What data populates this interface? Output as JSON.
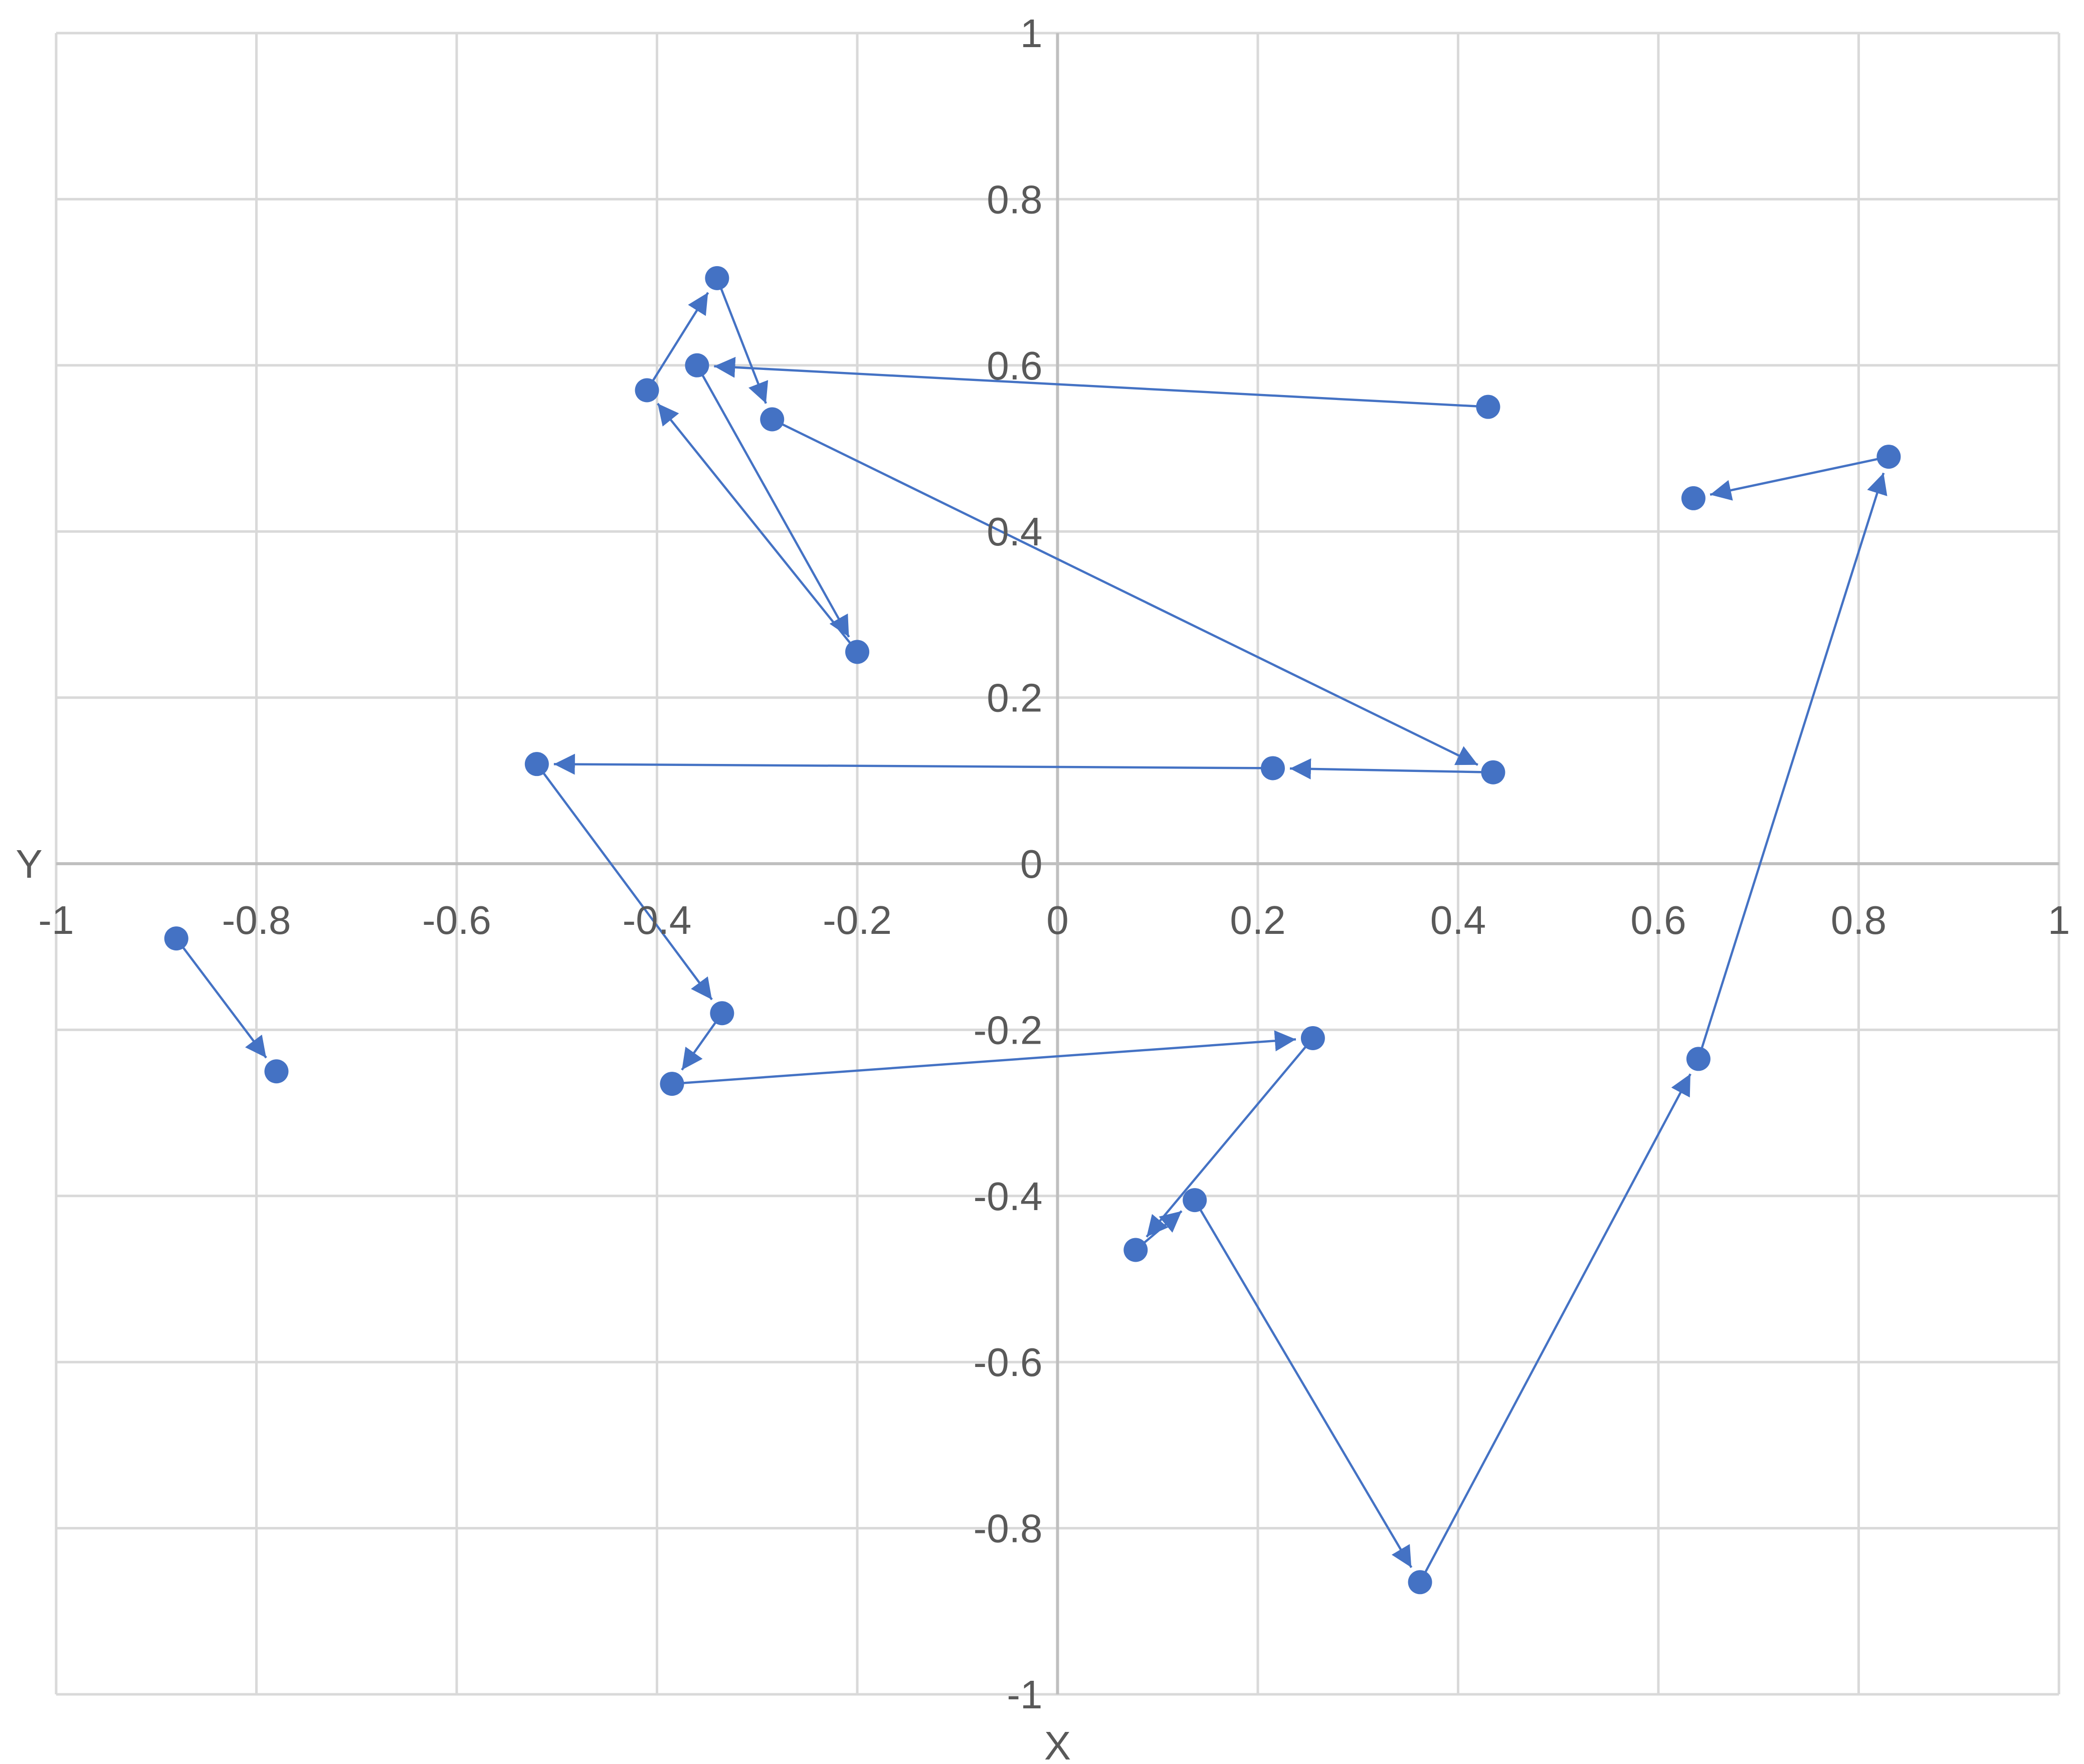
{
  "chart_data": {
    "type": "scatter",
    "title": "",
    "xlabel": "X",
    "ylabel": "Y",
    "xlim": [
      -1,
      1
    ],
    "ylim": [
      -1,
      1
    ],
    "x_ticks": [
      -1,
      -0.8,
      -0.6,
      -0.4,
      -0.2,
      0,
      0.2,
      0.4,
      0.6,
      0.8,
      1
    ],
    "y_ticks": [
      -1,
      -0.8,
      -0.6,
      -0.4,
      -0.2,
      0,
      0.2,
      0.4,
      0.6,
      0.8,
      1
    ],
    "x_tick_labels": [
      "-1",
      "-0.8",
      "-0.6",
      "-0.4",
      "-0.2",
      "0",
      "0.2",
      "0.4",
      "0.6",
      "0.8",
      "1"
    ],
    "y_tick_labels": [
      "-1",
      "-0.8",
      "-0.6",
      "-0.4",
      "-0.2",
      "0",
      "0.2",
      "0.4",
      "0.6",
      "0.8",
      "1"
    ],
    "grid": true,
    "legend": "none",
    "color": "#4472c4",
    "connections": "arrows from each point to the next",
    "series": [
      {
        "points": [
          [
            -0.88,
            -0.09
          ],
          [
            -0.78,
            -0.25
          ]
        ]
      },
      {
        "points": [
          [
            0.43,
            0.55
          ],
          [
            -0.36,
            0.6
          ],
          [
            -0.2,
            0.255
          ],
          [
            -0.41,
            0.57
          ],
          [
            -0.34,
            0.705
          ],
          [
            -0.285,
            0.535
          ],
          [
            0.435,
            0.11
          ],
          [
            0.215,
            0.115
          ],
          [
            -0.52,
            0.12
          ],
          [
            -0.335,
            -0.18
          ],
          [
            -0.385,
            -0.265
          ],
          [
            0.255,
            -0.21
          ],
          [
            0.078,
            -0.465
          ],
          [
            0.137,
            -0.405
          ],
          [
            0.362,
            -0.865
          ],
          [
            0.64,
            -0.235
          ],
          [
            0.83,
            0.49
          ],
          [
            0.635,
            0.44
          ]
        ]
      }
    ]
  }
}
